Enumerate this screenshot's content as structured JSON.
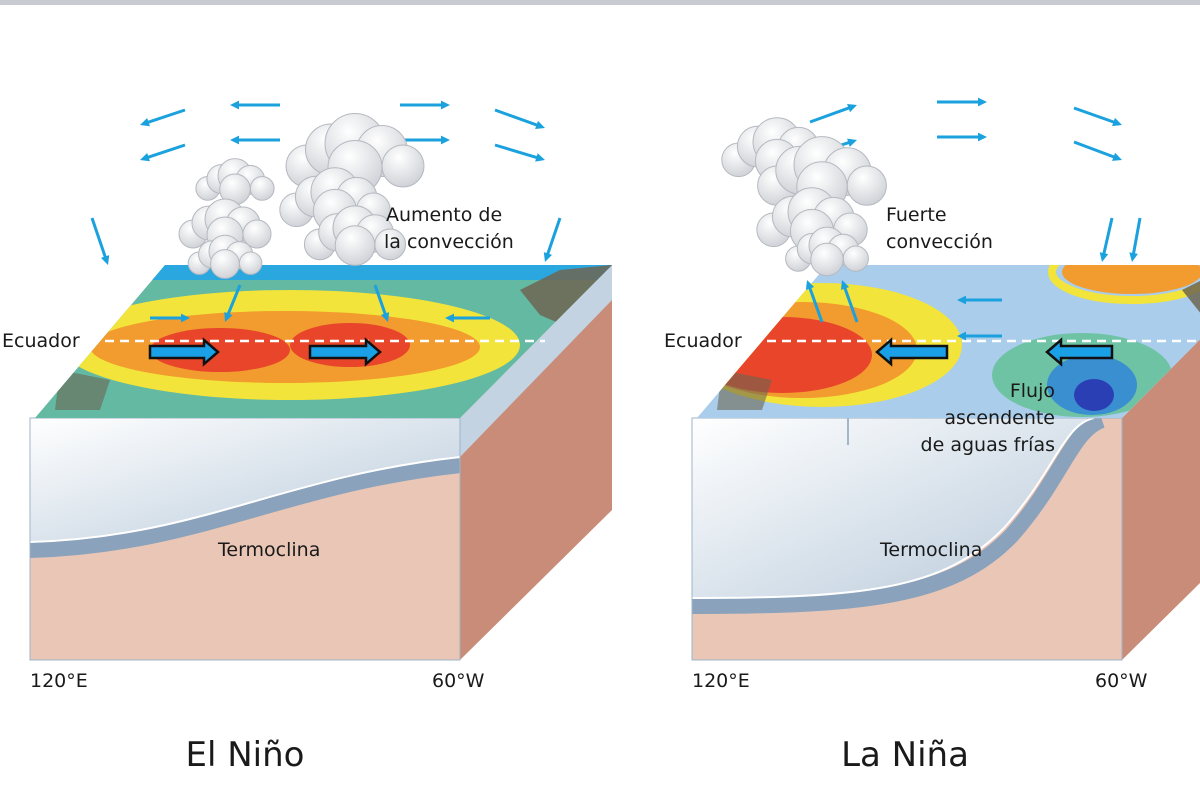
{
  "panels": [
    {
      "title": "El Niño",
      "equator": "Ecuador",
      "convection": [
        "Aumento de",
        "la convección"
      ],
      "thermocline": "Termoclina",
      "west": "120°E",
      "east": "60°W"
    },
    {
      "title": "La Niña",
      "equator": "Ecuador",
      "convection": [
        "Fuerte",
        "convección"
      ],
      "upwelling": [
        "Flujo",
        "ascendente",
        "de aguas frías"
      ],
      "thermocline": "Termoclina",
      "west": "120°E",
      "east": "60°W"
    }
  ]
}
